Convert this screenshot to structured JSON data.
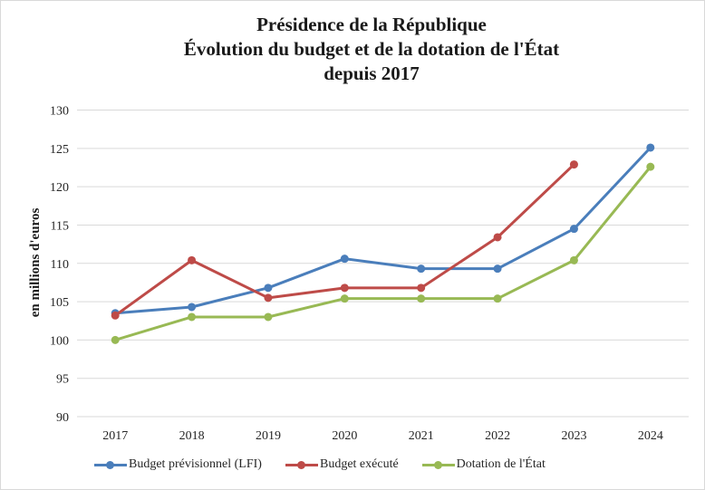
{
  "chart_data": {
    "type": "line",
    "title": [
      "Présidence de la République",
      "Évolution du budget et de la dotation de l'État",
      "depuis 2017"
    ],
    "xlabel": "",
    "ylabel": "en millions d'euros",
    "ylim": [
      90,
      130
    ],
    "yticks": [
      90,
      95,
      100,
      105,
      110,
      115,
      120,
      125,
      130
    ],
    "grid": true,
    "legend_position": "bottom",
    "categories": [
      "2017",
      "2018",
      "2019",
      "2020",
      "2021",
      "2022",
      "2023",
      "2024"
    ],
    "series": [
      {
        "name": "Budget prévisionnel (LFI)",
        "color": "#4a7ebb",
        "values": [
          103.5,
          104.3,
          106.8,
          110.6,
          109.3,
          109.3,
          114.5,
          125.1
        ]
      },
      {
        "name": "Budget exécuté",
        "color": "#be4b48",
        "values": [
          103.2,
          110.4,
          105.5,
          106.8,
          106.8,
          113.4,
          122.9,
          null
        ]
      },
      {
        "name": "Dotation de l'État",
        "color": "#98b954",
        "values": [
          100.0,
          103.0,
          103.0,
          105.4,
          105.4,
          105.4,
          110.4,
          122.6
        ]
      }
    ]
  }
}
